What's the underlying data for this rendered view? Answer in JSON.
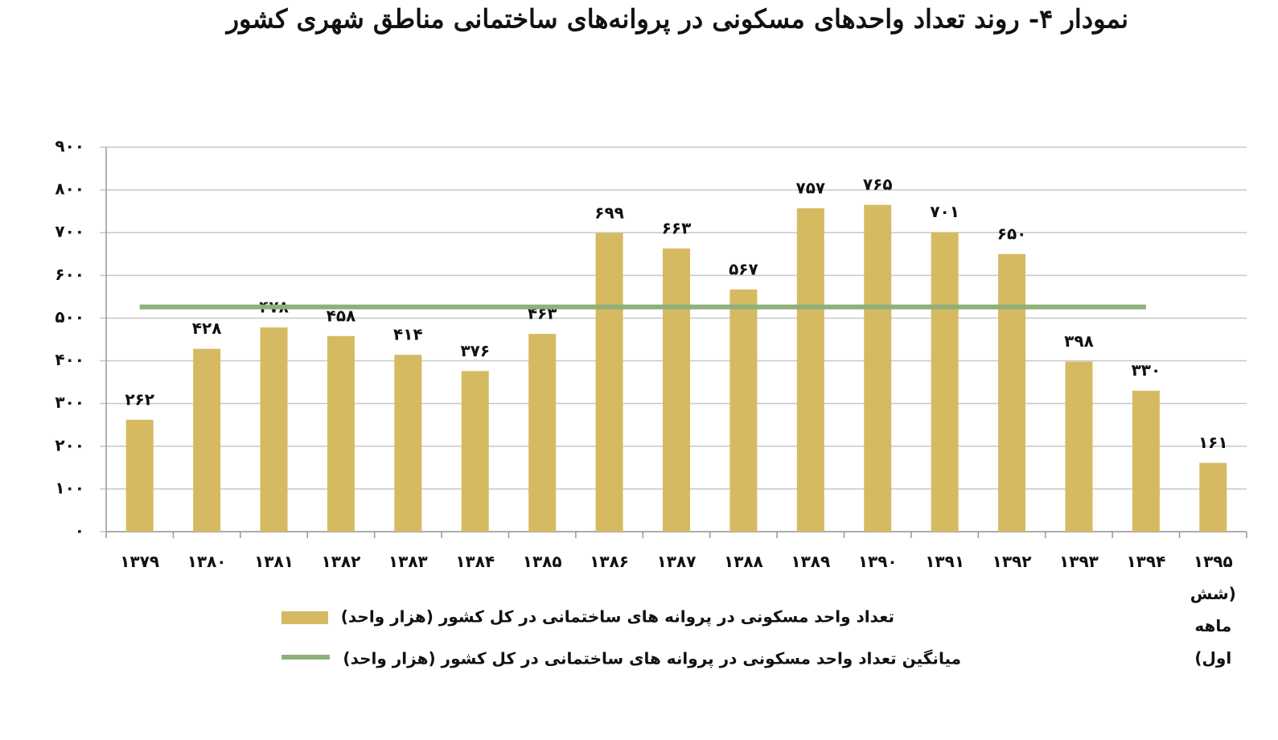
{
  "chart_data": {
    "type": "bar",
    "title": "نمودار ۴- روند تعداد واحدهای مسکونی در پروانه‌های ساختمانی مناطق شهری کشور",
    "categories": [
      "۱۳۷۹",
      "۱۳۸۰",
      "۱۳۸۱",
      "۱۳۸۲",
      "۱۳۸۳",
      "۱۳۸۴",
      "۱۳۸۵",
      "۱۳۸۶",
      "۱۳۸۷",
      "۱۳۸۸",
      "۱۳۸۹",
      "۱۳۹۰",
      "۱۳۹۱",
      "۱۳۹۲",
      "۱۳۹۳",
      "۱۳۹۴",
      "۱۳۹۵ (شش ماهه اول)"
    ],
    "series": [
      {
        "name": "تعداد واحد مسکونی در پروانه های ساختمانی در کل کشور (هزار واحد)",
        "type": "bar",
        "color": "#d6ba62",
        "values": [
          262,
          428,
          478,
          458,
          414,
          376,
          463,
          699,
          663,
          567,
          757,
          765,
          701,
          650,
          398,
          330,
          161
        ],
        "value_labels": [
          "۲۶۲",
          "۴۲۸",
          "۴۷۸",
          "۴۵۸",
          "۴۱۴",
          "۳۷۶",
          "۴۶۳",
          "۶۹۹",
          "۶۶۳",
          "۵۶۷",
          "۷۵۷",
          "۷۶۵",
          "۷۰۱",
          "۶۵۰",
          "۳۹۸",
          "۳۳۰",
          "۱۶۱"
        ]
      },
      {
        "name": "میانگین تعداد واحد مسکونی در پروانه های ساختمانی در کل کشور (هزار واحد)",
        "type": "line",
        "color": "#8fb07a",
        "values": [
          526,
          526,
          526,
          526,
          526,
          526,
          526,
          526,
          526,
          526,
          526,
          526,
          526,
          526,
          526,
          526,
          null
        ]
      }
    ],
    "ylim": [
      0,
      900
    ],
    "yticks": [
      {
        "value": 0,
        "label": "۰"
      },
      {
        "value": 100,
        "label": "۱۰۰"
      },
      {
        "value": 200,
        "label": "۲۰۰"
      },
      {
        "value": 300,
        "label": "۳۰۰"
      },
      {
        "value": 400,
        "label": "۴۰۰"
      },
      {
        "value": 500,
        "label": "۵۰۰"
      },
      {
        "value": 600,
        "label": "۶۰۰"
      },
      {
        "value": 700,
        "label": "۷۰۰"
      },
      {
        "value": 800,
        "label": "۸۰۰"
      },
      {
        "value": 900,
        "label": "۹۰۰"
      }
    ],
    "grid": true
  }
}
